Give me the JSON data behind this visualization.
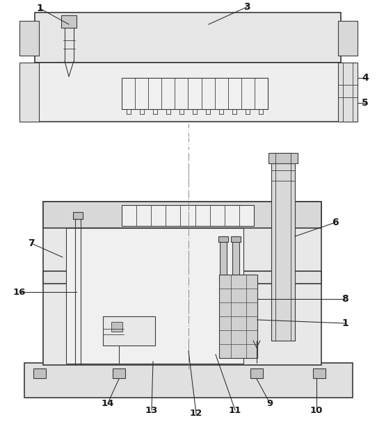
{
  "bg_color": "#ffffff",
  "lc": "#3a3a3a",
  "figsize": [
    5.42,
    6.07
  ],
  "dpi": 100
}
